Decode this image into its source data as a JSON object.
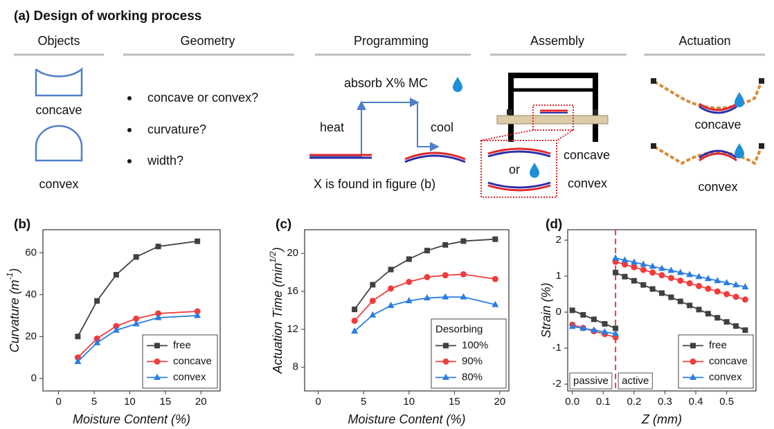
{
  "title": "(a) Design of working process",
  "stages": [
    "Objects",
    "Geometry",
    "Programming",
    "Assembly",
    "Actuation"
  ],
  "objects": [
    "concave",
    "convex"
  ],
  "geometry": [
    "concave or convex?",
    "curvature?",
    "width?"
  ],
  "programming": {
    "absorb": "absorb X% MC",
    "heat": "heat",
    "cool": "cool",
    "note": "X is found in figure (b)"
  },
  "assembly": {
    "or": "or",
    "concave": "concave",
    "convex": "convex"
  },
  "actuation": [
    "concave",
    "convex"
  ],
  "chart_data": [
    {
      "type": "line",
      "panel": "(b)",
      "xlabel": "Moisture Content (%)",
      "ylabel": "Curvature (m",
      "ylabel_sup": "-1",
      "ylabel_end": ")",
      "xlim": [
        -2.2,
        22.7
      ],
      "ylim": [
        -6,
        71
      ],
      "xticks": [
        0,
        5,
        10,
        15,
        20
      ],
      "yticks": [
        0,
        20,
        40,
        60
      ],
      "x": [
        2.7,
        5.4,
        8.1,
        10.9,
        14,
        19.5
      ],
      "series": [
        {
          "name": "free",
          "color": "#404040",
          "marker": "square",
          "values": [
            20,
            37,
            49.5,
            58,
            63,
            65.5
          ]
        },
        {
          "name": "concave",
          "color": "#f03c3c",
          "marker": "circle",
          "values": [
            10,
            19,
            25,
            28.5,
            31,
            32
          ]
        },
        {
          "name": "convex",
          "color": "#2a7de1",
          "marker": "triangle",
          "values": [
            8,
            17,
            23,
            26,
            29,
            30
          ]
        }
      ],
      "legend": "lower right"
    },
    {
      "type": "line",
      "panel": "(c)",
      "xlabel": "Moisture Content (%)",
      "ylabel": "Actuation Time (min",
      "ylabel_sup": "1/2",
      "ylabel_end": ")",
      "xlim": [
        -1.5,
        21
      ],
      "ylim": [
        5.5,
        22.5
      ],
      "xticks": [
        0,
        5,
        10,
        15,
        20
      ],
      "yticks": [
        8,
        12,
        16,
        20
      ],
      "x": [
        4,
        6,
        8,
        10,
        12,
        14,
        16,
        19.5
      ],
      "series": [
        {
          "name": "100%",
          "color": "#404040",
          "marker": "square",
          "values": [
            14.1,
            16.7,
            18.3,
            19.4,
            20.3,
            20.9,
            21.3,
            21.5
          ]
        },
        {
          "name": "90%",
          "color": "#f03c3c",
          "marker": "circle",
          "values": [
            12.9,
            15,
            16.3,
            17,
            17.5,
            17.7,
            17.8,
            17.3
          ]
        },
        {
          "name": "80%",
          "color": "#2a7de1",
          "marker": "triangle",
          "values": [
            11.8,
            13.5,
            14.5,
            15,
            15.3,
            15.4,
            15.4,
            14.6
          ]
        }
      ],
      "legend": "lower right",
      "legend_title": "Desorbing"
    },
    {
      "type": "line",
      "panel": "(d)",
      "xlabel": "Z (mm)",
      "ylabel": "Strain (%)",
      "xlim": [
        -0.015,
        0.595
      ],
      "ylim": [
        -2.19,
        2.29
      ],
      "xticks": [
        {
          "value": 0,
          "label": "0.0"
        },
        0.1,
        0.2,
        0.3,
        0.4,
        0.5
      ],
      "yticks": [
        -2,
        -1,
        0,
        1,
        2
      ],
      "x": [
        0,
        0.035,
        0.07,
        0.105,
        0.14,
        null,
        0.14,
        0.17,
        0.2,
        0.23,
        0.26,
        0.29,
        0.32,
        0.35,
        0.38,
        0.41,
        0.44,
        0.47,
        0.5,
        0.53,
        0.56
      ],
      "series": [
        {
          "name": "free",
          "color": "#404040",
          "marker": "square",
          "values": [
            0.05,
            -0.075,
            -0.2,
            -0.325,
            -0.45,
            null,
            1.1,
            0.986,
            0.871,
            0.757,
            0.643,
            0.529,
            0.414,
            0.3,
            0.186,
            0.071,
            -0.043,
            -0.157,
            -0.271,
            -0.386,
            -0.5
          ]
        },
        {
          "name": "concave",
          "color": "#f03c3c",
          "marker": "circle",
          "values": [
            -0.35,
            -0.44,
            -0.53,
            -0.61,
            -0.7,
            null,
            1.4,
            1.325,
            1.25,
            1.175,
            1.1,
            1.025,
            0.95,
            0.875,
            0.8,
            0.725,
            0.65,
            0.575,
            0.5,
            0.425,
            0.35
          ]
        },
        {
          "name": "convex",
          "color": "#2a7de1",
          "marker": "triangle",
          "values": [
            -0.4,
            -0.45,
            -0.5,
            -0.55,
            -0.6,
            null,
            1.5,
            1.443,
            1.386,
            1.329,
            1.271,
            1.214,
            1.157,
            1.1,
            1.043,
            0.986,
            0.929,
            0.871,
            0.814,
            0.757,
            0.7
          ]
        }
      ],
      "vline": 0.14,
      "vline_color": "#f03c3c",
      "annotations": [
        "passive",
        "active"
      ],
      "legend": "lower right"
    }
  ]
}
